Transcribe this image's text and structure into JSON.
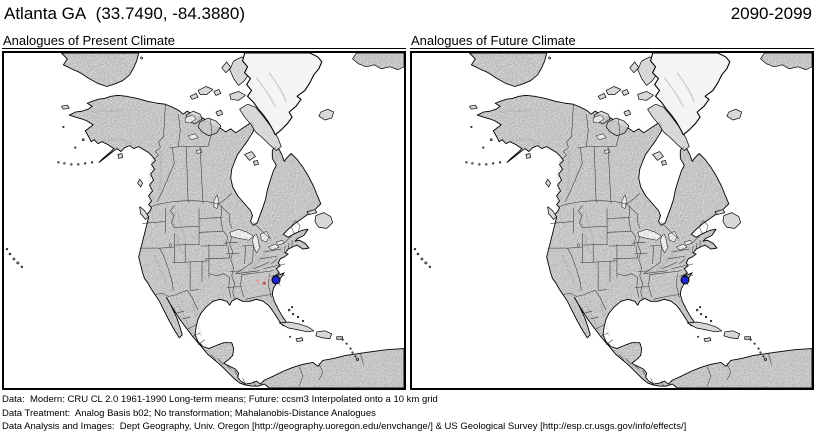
{
  "header": {
    "location": "Atlanta GA  (33.7490, -84.3880)",
    "period": "2090-2099"
  },
  "panels": [
    {
      "title": "Analogues of Present Climate",
      "markers": [
        {
          "type": "target",
          "x": 68.0,
          "y": 67.9,
          "size": 7,
          "color": "#2222cc"
        },
        {
          "type": "analogue",
          "x": 63.4,
          "y": 68.2,
          "size": 3,
          "color": "#e89898"
        },
        {
          "type": "analogue",
          "x": 65.0,
          "y": 68.8,
          "size": 2.5,
          "color": "#c05050"
        },
        {
          "type": "analogue",
          "x": 66.2,
          "y": 67.3,
          "size": 2,
          "color": "#e0a0a0"
        }
      ]
    },
    {
      "title": "Analogues of Future Climate",
      "markers": [
        {
          "type": "target",
          "x": 68.3,
          "y": 67.9,
          "size": 7,
          "color": "#2222cc"
        }
      ]
    }
  ],
  "footer": {
    "lines": [
      "Data:  Modern: CRU CL 2.0 1961-1990 Long-term means; Future: ccsm3 Interpolated onto a 10 km grid",
      "Data Treatment:  Analog Basis b02; No transformation; Mahalanobis-Distance Analogues",
      "Data Analysis and Images:  Dept Geography, Univ. Oregon [http://geography.uoregon.edu/envchange/] & US Geological Survey [http://esp.cr.usgs.gov/info/effects/]"
    ]
  },
  "map": {
    "region": "North America",
    "ocean_color": "#ffffff",
    "land_color": "#d8d8d8",
    "target_color": "#2222cc",
    "analogue_color": "#c05050"
  }
}
